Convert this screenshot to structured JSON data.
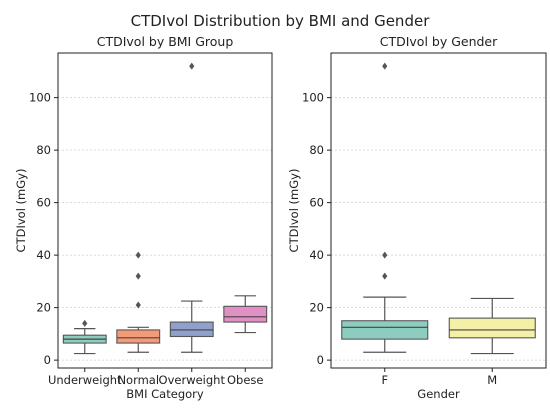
{
  "title": "CTDIvol Distribution by BMI and Gender",
  "chart_data": [
    {
      "type": "box",
      "title": "CTDIvol by BMI Group",
      "xlabel": "BMI Category",
      "ylabel": "CTDIvol (mGy)",
      "ylim": [
        -3,
        117
      ],
      "yticks": [
        0,
        20,
        40,
        60,
        80,
        100
      ],
      "grid": true,
      "categories": [
        "Underweight",
        "Normal",
        "Overweight",
        "Obese"
      ],
      "colors": [
        "#8dcdc0",
        "#f59a78",
        "#8fa0cb",
        "#e090c4"
      ],
      "boxes": [
        {
          "whislo": 2.5,
          "q1": 6.5,
          "med": 8.0,
          "q3": 9.5,
          "whishi": 12.0,
          "fliers": [
            14.0
          ]
        },
        {
          "whislo": 3.0,
          "q1": 6.5,
          "med": 8.5,
          "q3": 11.5,
          "whishi": 12.5,
          "fliers": [
            21.0,
            32.0,
            40.0
          ]
        },
        {
          "whislo": 3.0,
          "q1": 9.0,
          "med": 11.5,
          "q3": 14.5,
          "whishi": 22.5,
          "fliers": [
            112.0
          ]
        },
        {
          "whislo": 10.5,
          "q1": 14.5,
          "med": 16.5,
          "q3": 20.5,
          "whishi": 24.5,
          "fliers": []
        }
      ]
    },
    {
      "type": "box",
      "title": "CTDIvol by Gender",
      "xlabel": "Gender",
      "ylabel": "CTDIvol (mGy)",
      "ylim": [
        -3,
        117
      ],
      "yticks": [
        0,
        20,
        40,
        60,
        80,
        100
      ],
      "grid": true,
      "categories": [
        "F",
        "M"
      ],
      "colors": [
        "#8dcdc0",
        "#f5f0a8"
      ],
      "boxes": [
        {
          "whislo": 3.0,
          "q1": 8.0,
          "med": 12.5,
          "q3": 15.0,
          "whishi": 24.0,
          "fliers": [
            32.0,
            40.0,
            112.0
          ]
        },
        {
          "whislo": 2.5,
          "q1": 8.5,
          "med": 11.5,
          "q3": 16.0,
          "whishi": 23.5,
          "fliers": []
        }
      ]
    }
  ]
}
